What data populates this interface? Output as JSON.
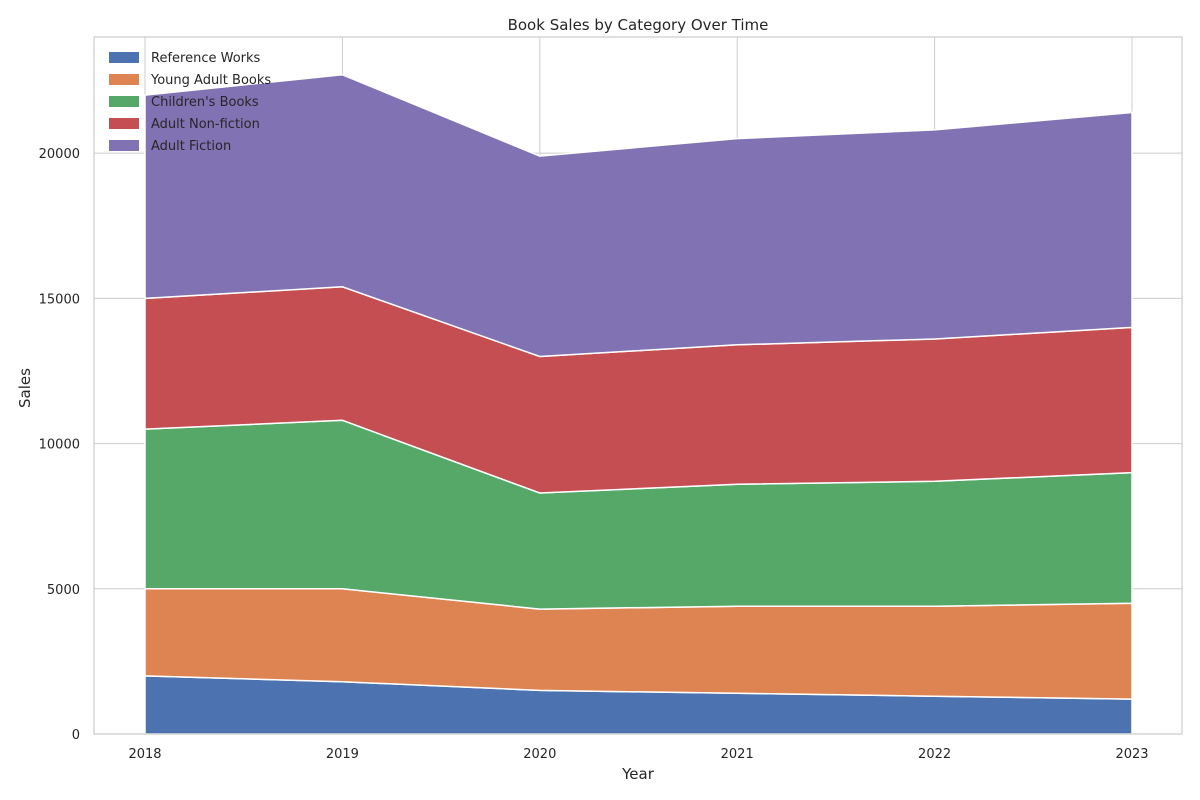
{
  "chart_data": {
    "type": "area",
    "stacked": true,
    "title": "Book Sales by Category Over Time",
    "xlabel": "Year",
    "ylabel": "Sales",
    "x": [
      2018,
      2019,
      2020,
      2021,
      2022,
      2023
    ],
    "ylim": [
      0,
      24000
    ],
    "yticks": [
      0,
      5000,
      10000,
      15000,
      20000
    ],
    "grid": true,
    "legend_position": "top-left",
    "series": [
      {
        "name": "Reference Works",
        "color": "#4c72b0",
        "values": [
          2000,
          1800,
          1500,
          1400,
          1300,
          1200
        ]
      },
      {
        "name": "Young Adult Books",
        "color": "#dd8452",
        "values": [
          3000,
          3200,
          2800,
          3000,
          3100,
          3300
        ]
      },
      {
        "name": "Children's Books",
        "color": "#55a868",
        "values": [
          5500,
          5800,
          4000,
          4200,
          4300,
          4500
        ]
      },
      {
        "name": "Adult Non-fiction",
        "color": "#c44e52",
        "values": [
          4500,
          4600,
          4700,
          4800,
          4900,
          5000
        ]
      },
      {
        "name": "Adult Fiction",
        "color": "#8172b3",
        "values": [
          7000,
          7300,
          6900,
          7100,
          7200,
          7400
        ]
      }
    ]
  }
}
